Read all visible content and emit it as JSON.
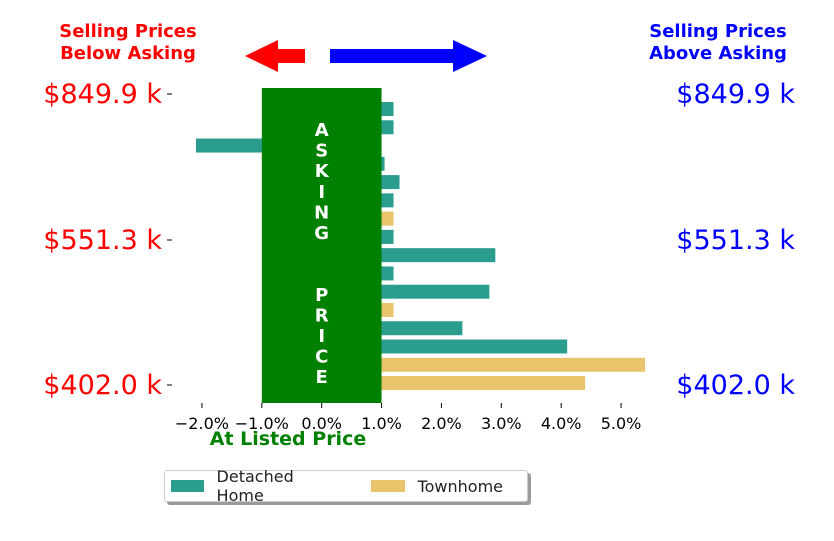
{
  "chart_data": {
    "type": "bar",
    "orientation": "horizontal",
    "title": "",
    "header_left": [
      "Selling Prices",
      "Below Asking"
    ],
    "header_right": [
      "Selling Prices",
      "Above Asking"
    ],
    "xlabel": "At Listed Price",
    "xlim": [
      -2.5,
      5.4
    ],
    "xticks": [
      -2,
      -1,
      0,
      1,
      2,
      3,
      4,
      5
    ],
    "xtick_labels": [
      "−2.0%",
      "−1.0%",
      "0.0%",
      "1.0%",
      "2.0%",
      "3.0%",
      "4.0%",
      "5.0%"
    ],
    "y_labels_left": [
      "$849.9 k",
      "$551.3 k",
      "$402.0 k"
    ],
    "y_labels_right": [
      "$849.9 k",
      "$551.3 k",
      "$402.0 k"
    ],
    "asking_band": {
      "from": -1.0,
      "to": 1.0,
      "label": "ASKING  PRICE"
    },
    "series": [
      {
        "name": "Detached Home",
        "color": "#2a9d8f"
      },
      {
        "name": "Townhome",
        "color": "#e9c46a"
      }
    ],
    "bars": [
      {
        "value": 1.2,
        "series": 0
      },
      {
        "value": 1.2,
        "series": 0
      },
      {
        "value": -2.1,
        "series": 0
      },
      {
        "value": 1.05,
        "series": 0
      },
      {
        "value": 1.3,
        "series": 0
      },
      {
        "value": 1.2,
        "series": 0
      },
      {
        "value": 1.2,
        "series": 1
      },
      {
        "value": 1.2,
        "series": 0
      },
      {
        "value": 2.9,
        "series": 0
      },
      {
        "value": 1.2,
        "series": 0
      },
      {
        "value": 2.8,
        "series": 0
      },
      {
        "value": 1.2,
        "series": 1
      },
      {
        "value": 2.35,
        "series": 0
      },
      {
        "value": 4.1,
        "series": 0
      },
      {
        "value": 5.4,
        "series": 1
      },
      {
        "value": 4.4,
        "series": 1
      }
    ],
    "colors": {
      "below": "#ff0000",
      "above": "#0000ff",
      "asking": "#008000",
      "text_on_band": "#ffffff"
    }
  }
}
